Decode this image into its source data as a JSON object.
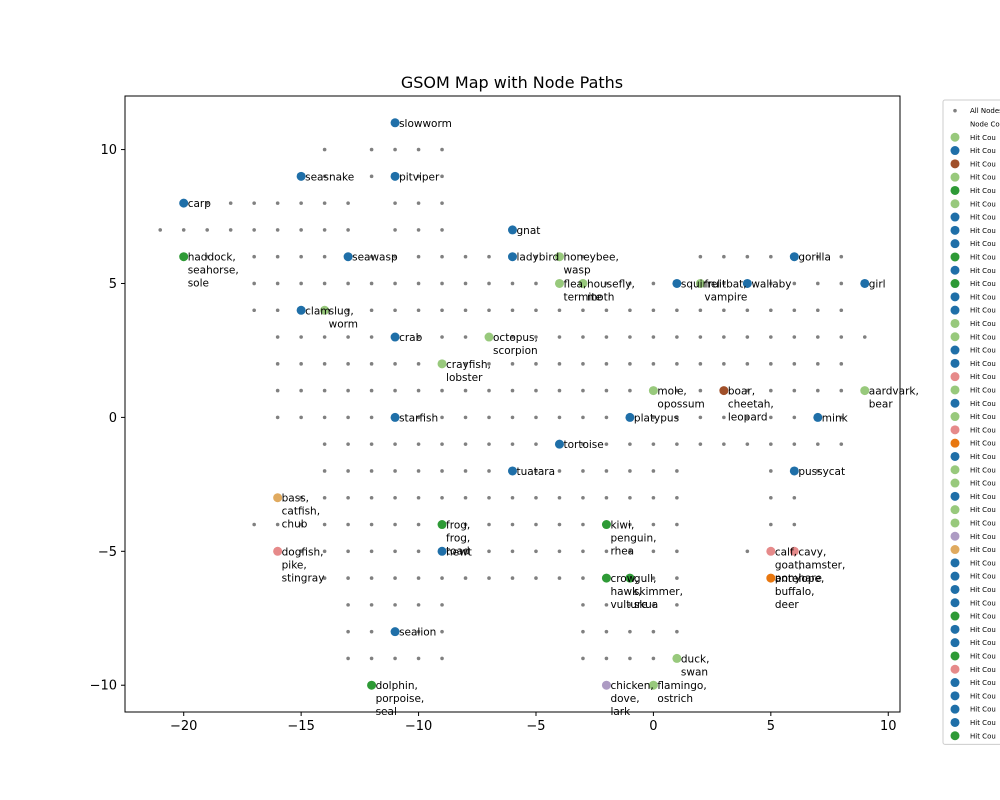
{
  "chart_data": {
    "type": "scatter",
    "title": "GSOM Map with Node Paths",
    "xlabel": "",
    "ylabel": "",
    "xlim": [
      -22.5,
      10.5
    ],
    "ylim": [
      -11,
      12
    ],
    "grid": false,
    "xticks": [
      -20,
      -15,
      -10,
      -5,
      0,
      5,
      10
    ],
    "yticks": [
      -10,
      -5,
      0,
      5,
      10
    ],
    "xtick_labels": [
      "−20",
      "−15",
      "−10",
      "−5",
      "0",
      "5",
      "10"
    ],
    "ytick_labels": [
      "−10",
      "−5",
      "0",
      "5",
      "10"
    ],
    "colors": {
      "node": "#808080",
      "dark_blue": "#1f6fa8",
      "light_green": "#98c97c",
      "dark_green": "#2e9a36",
      "brown": "#a0502a",
      "pink": "#e68a8a",
      "orange": "#e8770f",
      "lavender": "#ad9bc3",
      "tan": "#e0aa5f"
    },
    "all_nodes": {
      "rows": [
        {
          "y": 11,
          "x": [
            -11
          ]
        },
        {
          "y": 10,
          "x": [
            -14,
            -12,
            -11,
            -10,
            -9
          ]
        },
        {
          "y": 9,
          "x": [
            -14,
            -12,
            -11,
            -10,
            -9
          ]
        },
        {
          "y": 8,
          "x": [
            -19,
            -18,
            -17,
            -16,
            -15,
            -14,
            -13,
            -11,
            -10,
            -9
          ]
        },
        {
          "y": 7,
          "x": [
            -21,
            -20,
            -19,
            -18,
            -17,
            -16,
            -15,
            -14,
            -13,
            -11,
            -10,
            -9,
            -6
          ]
        },
        {
          "y": 6,
          "x": [
            -19,
            -17,
            -16,
            -15,
            -14,
            -13,
            -12,
            -11,
            -10,
            -9,
            -8,
            -7,
            -6,
            -5,
            -4,
            -3,
            2,
            3,
            4,
            5,
            6,
            7,
            8
          ]
        },
        {
          "y": 5,
          "x": [
            -17,
            -16,
            -15,
            -14,
            -13,
            -12,
            -11,
            -10,
            -9,
            -8,
            -7,
            -6,
            -5,
            -4,
            -3,
            -2,
            -1,
            0,
            1,
            2,
            3,
            4,
            5,
            6,
            7,
            8,
            9
          ]
        },
        {
          "y": 4,
          "x": [
            -17,
            -16,
            -15,
            -14,
            -13,
            -12,
            -11,
            -10,
            -9,
            -8,
            -7,
            -6,
            -5,
            -4,
            -3,
            -2,
            -1,
            0,
            1,
            2,
            3,
            4,
            5,
            6,
            7,
            8
          ]
        },
        {
          "y": 3,
          "x": [
            -16,
            -15,
            -14,
            -13,
            -12,
            -11,
            -10,
            -9,
            -8,
            -7,
            -6,
            -5,
            -4,
            -3,
            -2,
            -1,
            0,
            1,
            2,
            3,
            4,
            5,
            6,
            7,
            8,
            9
          ]
        },
        {
          "y": 2,
          "x": [
            -16,
            -15,
            -14,
            -13,
            -12,
            -11,
            -10,
            -9,
            -8,
            -7,
            -6,
            -5,
            -4,
            -3,
            -2,
            -1,
            0,
            1,
            2,
            3,
            4,
            5,
            6,
            7,
            8
          ]
        },
        {
          "y": 1,
          "x": [
            -16,
            -15,
            -14,
            -13,
            -12,
            -11,
            -10,
            -9,
            -8,
            -7,
            -6,
            -5,
            -4,
            -3,
            -2,
            -1,
            0,
            1,
            2,
            3,
            4,
            5,
            6,
            7,
            8
          ]
        },
        {
          "y": 0,
          "x": [
            -16,
            -15,
            -14,
            -13,
            -12,
            -11,
            -10,
            -9,
            -8,
            -7,
            -6,
            -5,
            -4,
            -3,
            -2,
            -1,
            0,
            1,
            2,
            3,
            4,
            5,
            6,
            7,
            8
          ]
        },
        {
          "y": -1,
          "x": [
            -14,
            -13,
            -12,
            -11,
            -10,
            -9,
            -8,
            -7,
            -6,
            -5,
            -4,
            -3,
            -2,
            -1,
            0,
            1,
            2,
            3,
            4,
            5,
            6,
            7,
            8
          ]
        },
        {
          "y": -2,
          "x": [
            -14,
            -13,
            -12,
            -11,
            -10,
            -9,
            -8,
            -7,
            -6,
            -5,
            -4,
            -3,
            -2,
            -1,
            0,
            1,
            5,
            6,
            7
          ]
        },
        {
          "y": -3,
          "x": [
            -16,
            -15,
            -14,
            -13,
            -12,
            -11,
            -10,
            -9,
            -8,
            -7,
            -6,
            -5,
            -4,
            -3,
            -2,
            -1,
            0,
            1,
            5,
            6
          ]
        },
        {
          "y": -4,
          "x": [
            -17,
            -16,
            -15,
            -14,
            -13,
            -12,
            -11,
            -10,
            -9,
            -8,
            -7,
            -6,
            -5,
            -4,
            -3,
            -2,
            -1,
            0,
            1,
            5,
            6
          ]
        },
        {
          "y": -5,
          "x": [
            -16,
            -15,
            -14,
            -13,
            -12,
            -11,
            -10,
            -9,
            -8,
            -7,
            -6,
            -5,
            -4,
            -3,
            -2,
            -1,
            0,
            1,
            4,
            5,
            6
          ]
        },
        {
          "y": -6,
          "x": [
            -14,
            -13,
            -12,
            -11,
            -10,
            -9,
            -8,
            -7,
            -6,
            -5,
            -4,
            -3,
            -2,
            -1,
            0,
            1,
            5
          ]
        },
        {
          "y": -7,
          "x": [
            -13,
            -12,
            -11,
            -10,
            -9,
            -3,
            -2,
            -1,
            0,
            1
          ]
        },
        {
          "y": -8,
          "x": [
            -13,
            -12,
            -11,
            -10,
            -9,
            -3,
            -2,
            -1,
            0,
            1
          ]
        },
        {
          "y": -9,
          "x": [
            -13,
            -12,
            -11,
            -10,
            -9,
            -3,
            -2,
            -1,
            0,
            1
          ]
        }
      ]
    },
    "hit_nodes": [
      {
        "x": -11,
        "y": 11,
        "color": "#1f6fa8",
        "label": "slowworm"
      },
      {
        "x": -15,
        "y": 9,
        "color": "#1f6fa8",
        "label": "seasnake"
      },
      {
        "x": -11,
        "y": 9,
        "color": "#1f6fa8",
        "label": "pitviper"
      },
      {
        "x": -20,
        "y": 8,
        "color": "#1f6fa8",
        "label": "carp"
      },
      {
        "x": -20,
        "y": 6,
        "color": "#2e9a36",
        "label": "haddock,\nseahorse,\nsole"
      },
      {
        "x": -13,
        "y": 6,
        "color": "#1f6fa8",
        "label": "seawasp"
      },
      {
        "x": -6,
        "y": 7,
        "color": "#1f6fa8",
        "label": "gnat"
      },
      {
        "x": -6,
        "y": 6,
        "color": "#1f6fa8",
        "label": "ladybird"
      },
      {
        "x": -4,
        "y": 6,
        "color": "#98c97c",
        "label": "honeybee,\nwasp"
      },
      {
        "x": -4,
        "y": 5,
        "color": "#98c97c",
        "label": "flea,\ntermite"
      },
      {
        "x": -3,
        "y": 5,
        "color": "#98c97c",
        "label": "housefly,\nmoth"
      },
      {
        "x": 1,
        "y": 5,
        "color": "#1f6fa8",
        "label": "squirrel"
      },
      {
        "x": 2,
        "y": 5,
        "color": "#98c97c",
        "label": "fruitbat,\nvampire"
      },
      {
        "x": 4,
        "y": 5,
        "color": "#1f6fa8",
        "label": "wallaby"
      },
      {
        "x": 6,
        "y": 6,
        "color": "#1f6fa8",
        "label": "gorilla"
      },
      {
        "x": 9,
        "y": 5,
        "color": "#1f6fa8",
        "label": "girl"
      },
      {
        "x": -15,
        "y": 4,
        "color": "#1f6fa8",
        "label": "clam"
      },
      {
        "x": -14,
        "y": 4,
        "color": "#98c97c",
        "label": "slug,\nworm"
      },
      {
        "x": -11,
        "y": 3,
        "color": "#1f6fa8",
        "label": "crab"
      },
      {
        "x": -7,
        "y": 3,
        "color": "#98c97c",
        "label": "octopus,\nscorpion"
      },
      {
        "x": -9,
        "y": 2,
        "color": "#98c97c",
        "label": "crayfish,\nlobster"
      },
      {
        "x": 0,
        "y": 1,
        "color": "#98c97c",
        "label": "mole,\nopossum"
      },
      {
        "x": 3,
        "y": 1,
        "color": "#a0502a",
        "label": "boar,\ncheetah,\nleopard"
      },
      {
        "x": 9,
        "y": 1,
        "color": "#98c97c",
        "label": "aardvark,\nbear"
      },
      {
        "x": -11,
        "y": 0,
        "color": "#1f6fa8",
        "label": "starfish"
      },
      {
        "x": -1,
        "y": 0,
        "color": "#1f6fa8",
        "label": "platypus"
      },
      {
        "x": 7,
        "y": 0,
        "color": "#1f6fa8",
        "label": "mink"
      },
      {
        "x": -4,
        "y": -1,
        "color": "#1f6fa8",
        "label": "tortoise"
      },
      {
        "x": -6,
        "y": -2,
        "color": "#1f6fa8",
        "label": "tuatara"
      },
      {
        "x": 6,
        "y": -2,
        "color": "#1f6fa8",
        "label": "pussycat"
      },
      {
        "x": -16,
        "y": -3,
        "color": "#e0aa5f",
        "label": "bass,\ncatfish,\nchub"
      },
      {
        "x": -9,
        "y": -4,
        "color": "#2e9a36",
        "label": "frog,\nfrog,\ntoad"
      },
      {
        "x": -2,
        "y": -4,
        "color": "#2e9a36",
        "label": "kiwi,\npenguin,\nrhea"
      },
      {
        "x": -16,
        "y": -5,
        "color": "#e68a8a",
        "label": "dogfish,\npike,\nstingray"
      },
      {
        "x": -9,
        "y": -5,
        "color": "#1f6fa8",
        "label": "newt"
      },
      {
        "x": 5,
        "y": -5,
        "color": "#e68a8a",
        "label": "calf,\ngoat,\npony"
      },
      {
        "x": 6,
        "y": -5,
        "color": "#e68a8a",
        "label": "cavy,\nhamster,\nhare"
      },
      {
        "x": 5,
        "y": -6,
        "color": "#e8770f",
        "label": "antelope,\nbuffalo,\ndeer"
      },
      {
        "x": -2,
        "y": -6,
        "color": "#2e9a36",
        "label": "crow,\nhawk,\nvulture"
      },
      {
        "x": -1,
        "y": -6,
        "color": "#2e9a36",
        "label": "gull,\nskimmer,\nskua"
      },
      {
        "x": -11,
        "y": -8,
        "color": "#1f6fa8",
        "label": "sealion"
      },
      {
        "x": 1,
        "y": -9,
        "color": "#98c97c",
        "label": "duck,\nswan"
      },
      {
        "x": -12,
        "y": -10,
        "color": "#2e9a36",
        "label": "dolphin,\nporpoise,\nseal"
      },
      {
        "x": -2,
        "y": -10,
        "color": "#ad9bc3",
        "label": "chicken,\ndove,\nlark"
      },
      {
        "x": 0,
        "y": -10,
        "color": "#98c97c",
        "label": "flamingo,\nostrich"
      }
    ],
    "legend": {
      "placement": "right, outside plot",
      "entries": [
        {
          "label": "All Nodes",
          "color": "#808080",
          "kind": "small"
        },
        {
          "label": "Node Count",
          "color": "",
          "kind": "none"
        },
        {
          "label": "Hit Cou",
          "color": "#98c97c"
        },
        {
          "label": "Hit Cou",
          "color": "#1f6fa8"
        },
        {
          "label": "Hit Cou",
          "color": "#a0502a"
        },
        {
          "label": "Hit Cou",
          "color": "#98c97c"
        },
        {
          "label": "Hit Cou",
          "color": "#2e9a36"
        },
        {
          "label": "Hit Cou",
          "color": "#98c97c"
        },
        {
          "label": "Hit Cou",
          "color": "#1f6fa8"
        },
        {
          "label": "Hit Cou",
          "color": "#1f6fa8"
        },
        {
          "label": "Hit Cou",
          "color": "#1f6fa8"
        },
        {
          "label": "Hit Cou",
          "color": "#2e9a36"
        },
        {
          "label": "Hit Cou",
          "color": "#1f6fa8"
        },
        {
          "label": "Hit Cou",
          "color": "#2e9a36"
        },
        {
          "label": "Hit Cou",
          "color": "#1f6fa8"
        },
        {
          "label": "Hit Cou",
          "color": "#1f6fa8"
        },
        {
          "label": "Hit Cou",
          "color": "#98c97c"
        },
        {
          "label": "Hit Cou",
          "color": "#98c97c"
        },
        {
          "label": "Hit Cou",
          "color": "#1f6fa8"
        },
        {
          "label": "Hit Cou",
          "color": "#1f6fa8"
        },
        {
          "label": "Hit Cou",
          "color": "#e68a8a"
        },
        {
          "label": "Hit Cou",
          "color": "#98c97c"
        },
        {
          "label": "Hit Cou",
          "color": "#1f6fa8"
        },
        {
          "label": "Hit Cou",
          "color": "#98c97c"
        },
        {
          "label": "Hit Cou",
          "color": "#e68a8a"
        },
        {
          "label": "Hit Cou",
          "color": "#e8770f"
        },
        {
          "label": "Hit Cou",
          "color": "#1f6fa8"
        },
        {
          "label": "Hit Cou",
          "color": "#98c97c"
        },
        {
          "label": "Hit Cou",
          "color": "#98c97c"
        },
        {
          "label": "Hit Cou",
          "color": "#1f6fa8"
        },
        {
          "label": "Hit Cou",
          "color": "#98c97c"
        },
        {
          "label": "Hit Cou",
          "color": "#98c97c"
        },
        {
          "label": "Hit Cou",
          "color": "#ad9bc3"
        },
        {
          "label": "Hit Cou",
          "color": "#e0aa5f"
        },
        {
          "label": "Hit Cou",
          "color": "#1f6fa8"
        },
        {
          "label": "Hit Cou",
          "color": "#1f6fa8"
        },
        {
          "label": "Hit Cou",
          "color": "#1f6fa8"
        },
        {
          "label": "Hit Cou",
          "color": "#1f6fa8"
        },
        {
          "label": "Hit Cou",
          "color": "#2e9a36"
        },
        {
          "label": "Hit Cou",
          "color": "#1f6fa8"
        },
        {
          "label": "Hit Cou",
          "color": "#1f6fa8"
        },
        {
          "label": "Hit Cou",
          "color": "#2e9a36"
        },
        {
          "label": "Hit Cou",
          "color": "#e68a8a"
        },
        {
          "label": "Hit Cou",
          "color": "#1f6fa8"
        },
        {
          "label": "Hit Cou",
          "color": "#1f6fa8"
        },
        {
          "label": "Hit Cou",
          "color": "#1f6fa8"
        },
        {
          "label": "Hit Cou",
          "color": "#1f6fa8"
        },
        {
          "label": "Hit Cou",
          "color": "#2e9a36"
        }
      ]
    }
  }
}
